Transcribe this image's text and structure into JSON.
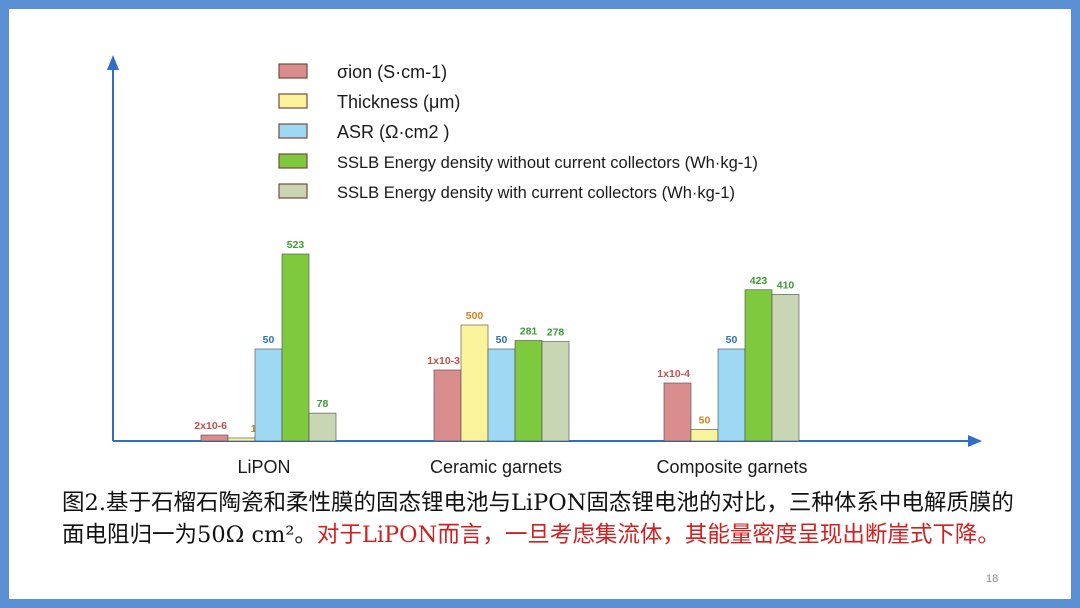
{
  "chart_data": {
    "type": "bar",
    "categories": [
      "LiPON",
      "Ceramic garnets",
      "Composite garnets"
    ],
    "series": [
      {
        "name": "σion (S·cm-1)",
        "color": "#d98d8c",
        "values": [
          2e-06,
          0.001,
          0.0001
        ],
        "labels": [
          "2x10-6",
          "1x10-3",
          "1x10-4"
        ]
      },
      {
        "name": "Thickness (μm)",
        "color": "#fbf39b",
        "values": [
          1,
          500,
          50
        ],
        "labels": [
          "1",
          "500",
          "50"
        ]
      },
      {
        "name": "ASR (Ω·cm2 )",
        "color": "#9fd8f3",
        "values": [
          50,
          50,
          50
        ],
        "labels": [
          "50",
          "50",
          "50"
        ]
      },
      {
        "name": "SSLB Energy density without current collectors (Wh·kg-1)",
        "color": "#7fc93f",
        "values": [
          523,
          281,
          423
        ],
        "labels": [
          "523",
          "281",
          "423"
        ]
      },
      {
        "name": "SSLB Energy density with current collectors (Wh·kg-1)",
        "color": "#c8d6b3",
        "values": [
          78,
          278,
          410
        ],
        "labels": [
          "78",
          "278",
          "410"
        ]
      }
    ],
    "legend_position": "top-center",
    "grid": false,
    "label_colors": {
      "σion (S·cm-1)": "#c0504d",
      "Thickness (μm)": "#d97f1c",
      "ASR (Ω·cm2 )": "#2c73b8",
      "energy": "#3d9b35"
    }
  },
  "caption": {
    "part1": "图2.基于石榴石陶瓷和柔性膜的固态锂电池与LiPON固态锂电池的对比，三种体系中电解质膜的面电阻归一为50Ω cm²。",
    "part2": "对于LiPON而言，一旦考虑集流体，其能量密度呈现出断崖式下降。"
  },
  "page_number": "18"
}
